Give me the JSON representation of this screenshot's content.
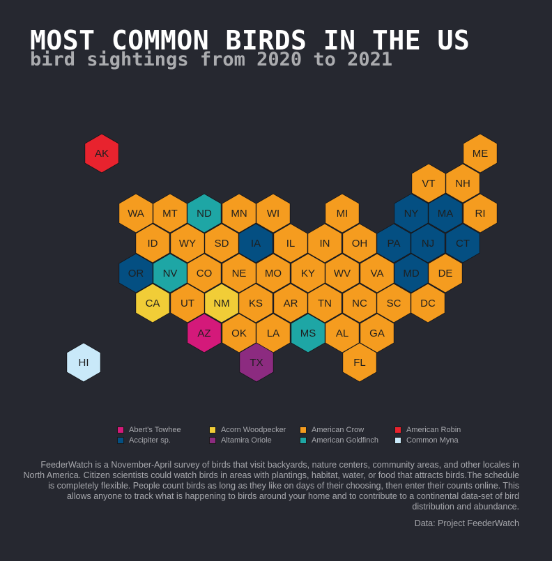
{
  "title": "MOST COMMON BIRDS IN THE US",
  "subtitle": "bird sightings from 2020 to 2021",
  "species_colors": {
    "Abert's Towhee": "#d4197a",
    "Acorn Woodpecker": "#f1cd37",
    "American Crow": "#f59c1f",
    "American Robin": "#e8232e",
    "Accipiter sp.": "#044f82",
    "Altamira Oriole": "#8c2b80",
    "American Goldfinch": "#1ea6a5",
    "Common Myna": "#c9e9f9"
  },
  "legend": [
    {
      "label": "Abert's Towhee",
      "color": "#d4197a"
    },
    {
      "label": "Acorn Woodpecker",
      "color": "#f1cd37"
    },
    {
      "label": "American Crow",
      "color": "#f59c1f"
    },
    {
      "label": "American Robin",
      "color": "#e8232e"
    },
    {
      "label": "Accipiter sp.",
      "color": "#044f82"
    },
    {
      "label": "Altamira Oriole",
      "color": "#8c2b80"
    },
    {
      "label": "American Goldfinch",
      "color": "#1ea6a5"
    },
    {
      "label": "Common Myna",
      "color": "#c9e9f9"
    }
  ],
  "states": [
    {
      "code": "AK",
      "species": "American Robin"
    },
    {
      "code": "ME",
      "species": "American Crow"
    },
    {
      "code": "VT",
      "species": "American Crow"
    },
    {
      "code": "NH",
      "species": "American Crow"
    },
    {
      "code": "WA",
      "species": "American Crow"
    },
    {
      "code": "MT",
      "species": "American Crow"
    },
    {
      "code": "ND",
      "species": "American Goldfinch"
    },
    {
      "code": "MN",
      "species": "American Crow"
    },
    {
      "code": "WI",
      "species": "American Crow"
    },
    {
      "code": "MI",
      "species": "American Crow"
    },
    {
      "code": "NY",
      "species": "Accipiter sp."
    },
    {
      "code": "MA",
      "species": "Accipiter sp."
    },
    {
      "code": "RI",
      "species": "American Crow"
    },
    {
      "code": "ID",
      "species": "American Crow"
    },
    {
      "code": "WY",
      "species": "American Crow"
    },
    {
      "code": "SD",
      "species": "American Crow"
    },
    {
      "code": "IA",
      "species": "Accipiter sp."
    },
    {
      "code": "IL",
      "species": "American Crow"
    },
    {
      "code": "IN",
      "species": "American Crow"
    },
    {
      "code": "OH",
      "species": "American Crow"
    },
    {
      "code": "PA",
      "species": "Accipiter sp."
    },
    {
      "code": "NJ",
      "species": "Accipiter sp."
    },
    {
      "code": "CT",
      "species": "Accipiter sp."
    },
    {
      "code": "OR",
      "species": "Accipiter sp."
    },
    {
      "code": "NV",
      "species": "American Goldfinch"
    },
    {
      "code": "CO",
      "species": "American Crow"
    },
    {
      "code": "NE",
      "species": "American Crow"
    },
    {
      "code": "MO",
      "species": "American Crow"
    },
    {
      "code": "KY",
      "species": "American Crow"
    },
    {
      "code": "WV",
      "species": "American Crow"
    },
    {
      "code": "VA",
      "species": "American Crow"
    },
    {
      "code": "MD",
      "species": "Accipiter sp."
    },
    {
      "code": "DE",
      "species": "American Crow"
    },
    {
      "code": "CA",
      "species": "Acorn Woodpecker"
    },
    {
      "code": "UT",
      "species": "American Crow"
    },
    {
      "code": "NM",
      "species": "Acorn Woodpecker"
    },
    {
      "code": "KS",
      "species": "American Crow"
    },
    {
      "code": "AR",
      "species": "American Crow"
    },
    {
      "code": "TN",
      "species": "American Crow"
    },
    {
      "code": "NC",
      "species": "American Crow"
    },
    {
      "code": "SC",
      "species": "American Crow"
    },
    {
      "code": "DC",
      "species": "American Crow"
    },
    {
      "code": "AZ",
      "species": "Abert's Towhee"
    },
    {
      "code": "OK",
      "species": "American Crow"
    },
    {
      "code": "LA",
      "species": "American Crow"
    },
    {
      "code": "MS",
      "species": "American Goldfinch"
    },
    {
      "code": "AL",
      "species": "American Crow"
    },
    {
      "code": "GA",
      "species": "American Crow"
    },
    {
      "code": "HI",
      "species": "Common Myna"
    },
    {
      "code": "TX",
      "species": "Altamira Oriole"
    },
    {
      "code": "FL",
      "species": "American Crow"
    }
  ],
  "description": "FeederWatch is a November-April survey of birds that visit backyards, nature centers, community areas, and other locales in North America. Citizen scientists could watch birds in areas with plantings, habitat, water, or food that attracts birds.The schedule is completely flexible. People count birds as long as they like on days of their choosing, then enter their counts online. This allows anyone to track what is happening to birds around your home and to contribute to a continental data-set of bird distribution and abundance.",
  "source": "Data: Project FeederWatch"
}
